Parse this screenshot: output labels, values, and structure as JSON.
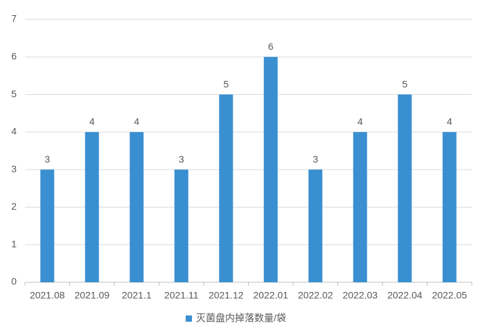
{
  "chart_data": {
    "type": "bar",
    "categories": [
      "2021.08",
      "2021.09",
      "2021.1",
      "2021.11",
      "2021.12",
      "2022.01",
      "2022.02",
      "2022.03",
      "2022.04",
      "2022.05"
    ],
    "series": [
      {
        "name": "灭菌盘内掉落数量/袋",
        "color": "#3a8fd1",
        "values": [
          3,
          4,
          4,
          3,
          5,
          6,
          3,
          4,
          5,
          4
        ]
      }
    ],
    "ylim": [
      0,
      7
    ],
    "yticks": [
      0,
      1,
      2,
      3,
      4,
      5,
      6,
      7
    ],
    "grid": true,
    "legend": "bottom",
    "data_labels": true
  }
}
